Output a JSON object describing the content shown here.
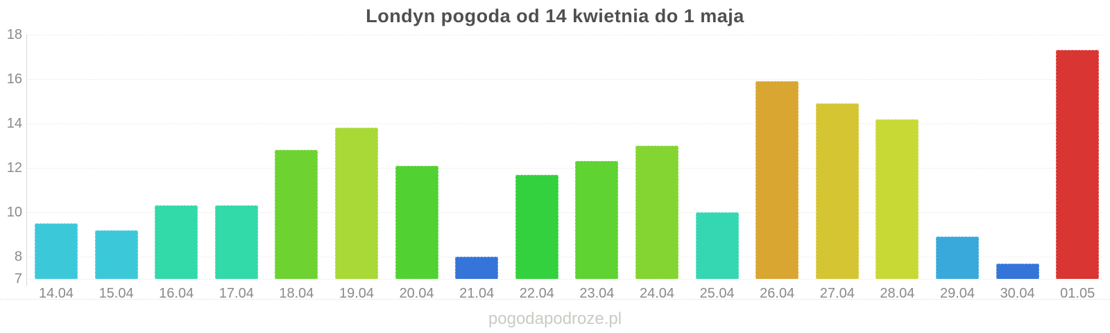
{
  "chart_data": {
    "type": "bar",
    "title": "Londyn pogoda od 14 kwietnia do 1 maja",
    "categories": [
      "14.04",
      "15.04",
      "16.04",
      "17.04",
      "18.04",
      "19.04",
      "20.04",
      "21.04",
      "22.04",
      "23.04",
      "24.04",
      "25.04",
      "26.04",
      "27.04",
      "28.04",
      "29.04",
      "30.04",
      "01.05"
    ],
    "values": [
      9.5,
      9.2,
      10.3,
      10.3,
      12.8,
      13.8,
      12.1,
      8.0,
      11.7,
      12.3,
      13.0,
      10.0,
      15.9,
      14.9,
      14.2,
      8.9,
      7.7,
      17.3
    ],
    "bar_colors": [
      "#3bc9da",
      "#3bc9da",
      "#32d9a9",
      "#32d9a9",
      "#6ed331",
      "#a8d936",
      "#52d132",
      "#3575d9",
      "#33d13d",
      "#5ed331",
      "#84d531",
      "#35d7b2",
      "#d9a632",
      "#d5c533",
      "#c8d936",
      "#38a9da",
      "#3575d9",
      "#d93532"
    ],
    "yticks": [
      18,
      16,
      14,
      12,
      10,
      8,
      7
    ],
    "ylim": [
      7,
      18
    ],
    "xlabel": "",
    "ylabel": "",
    "grid": "horizontal-dotted",
    "legend": "none"
  },
  "watermark": "pogodapodroze.pl",
  "colors": {
    "title": "#4f4f4f",
    "tick_label": "#8a8a8a",
    "grid_line": "#e9e9e9",
    "axis_line": "#d9d9d9",
    "watermark": "#c8ccc4",
    "background": "#ffffff"
  }
}
